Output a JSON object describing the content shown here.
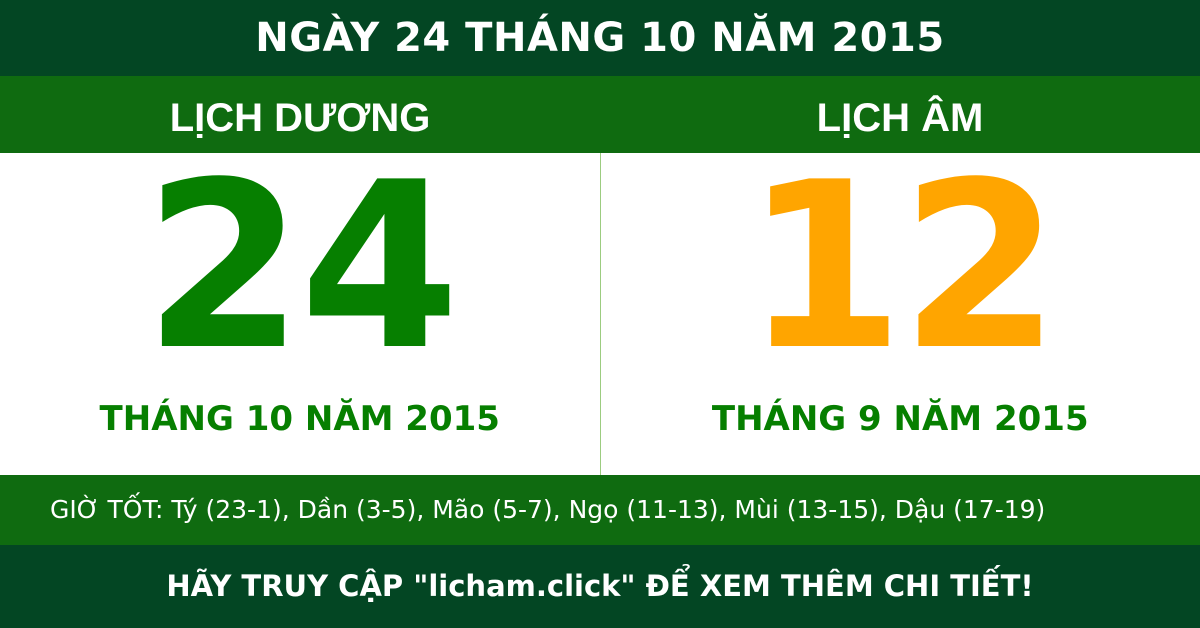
{
  "title": "NGÀY 24 THÁNG 10 NĂM 2015",
  "solar": {
    "heading": "LỊCH DƯƠNG",
    "day": "24",
    "month_year": "THÁNG 10 NĂM 2015"
  },
  "lunar": {
    "heading": "LỊCH ÂM",
    "day": "12",
    "month_year": "THÁNG 9 NĂM 2015"
  },
  "good_hours": "GIỜ TỐT: Tý (23-1), Dần (3-5), Mão (5-7), Ngọ (11-13), Mùi (13-15), Dậu (17-19)",
  "footer": "HÃY TRUY CẬP \"licham.click\" ĐỂ XEM THÊM CHI TIẾT!",
  "colors": {
    "dark_green": "#034623",
    "band_green": "#0f6b10",
    "solar_day": "#067f00",
    "lunar_day": "#ffa500"
  }
}
